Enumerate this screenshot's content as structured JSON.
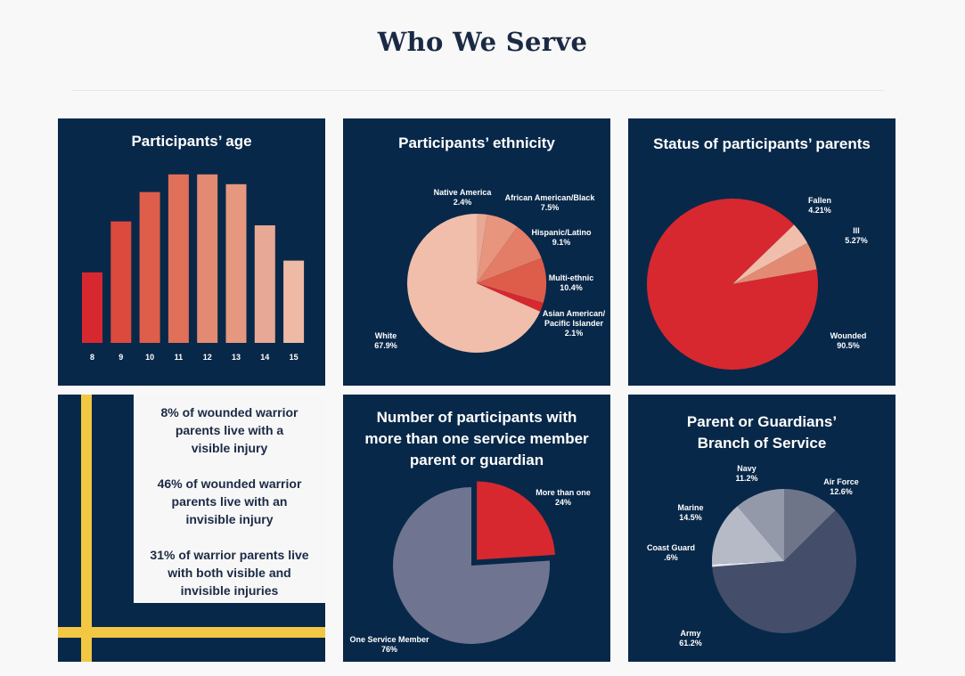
{
  "header": {
    "title": "Who We Serve"
  },
  "colors": {
    "navy": "#082849",
    "gold": "#f2c744",
    "red": "#d7282f",
    "title": "#1b2a44"
  },
  "stats_card": {
    "stats": [
      "8% of wounded warrior parents live with a visible injury",
      "46% of wounded warrior parents live with an invisible injury",
      "31% of warrior parents live with both visible and invisible injuries"
    ],
    "lines": [
      [
        "8% of wounded warrior",
        "parents live with a",
        "visible injury"
      ],
      [
        "46% of wounded warrior",
        "parents live with an",
        "invisible injury"
      ],
      [
        "31% of warrior parents live",
        "with both visible and",
        "invisible injuries"
      ]
    ]
  },
  "chart_data": [
    {
      "type": "bar",
      "title": "Participants’ age",
      "xlabel": "",
      "ylabel": "",
      "categories": [
        "8",
        "9",
        "10",
        "11",
        "12",
        "13",
        "14",
        "15"
      ],
      "values": [
        36,
        62,
        77,
        86,
        86,
        81,
        60,
        42
      ],
      "ylim": [
        0,
        100
      ],
      "grid": false,
      "colors": [
        "#d7282f",
        "#dc4a3e",
        "#df5e4b",
        "#e0705a",
        "#e38a72",
        "#e5977f",
        "#e8a896",
        "#eebaa6"
      ]
    },
    {
      "type": "pie",
      "title": "Participants’ ethnicity",
      "slices": [
        {
          "label": "Native America",
          "value": 2.4,
          "display": "2.4%",
          "color": "#e8a896"
        },
        {
          "label": "African American/Black",
          "value": 7.5,
          "display": "7.5%",
          "color": "#e8957e"
        },
        {
          "label": "Hispanic/Latino",
          "value": 9.1,
          "display": "9.1%",
          "color": "#e37d67"
        },
        {
          "label": "Multi-ethnic",
          "value": 10.4,
          "display": "10.4%",
          "color": "#dd5d4a"
        },
        {
          "label": "Asian American/ Pacific Islander",
          "value": 2.1,
          "display": "2.1%",
          "color": "#d7282f"
        },
        {
          "label": "White",
          "value": 67.9,
          "display": "67.9%",
          "color": "#f0beaa"
        }
      ]
    },
    {
      "type": "pie",
      "title": "Status of participants’ parents",
      "slices": [
        {
          "label": "Fallen",
          "value": 4.21,
          "display": "4.21%",
          "color": "#f0beaa"
        },
        {
          "label": "Ill",
          "value": 5.27,
          "display": "5.27%",
          "color": "#e38a72"
        },
        {
          "label": "Wounded",
          "value": 90.5,
          "display": "90.5%",
          "color": "#d7282f"
        }
      ]
    },
    {
      "type": "pie",
      "title": "Number of participants with more than one service member parent or guardian",
      "title_lines": [
        "Number of participants with",
        "more than one service member",
        "parent or guardian"
      ],
      "slices": [
        {
          "label": "More than one",
          "value": 24,
          "display": "24%",
          "color": "#d7282f"
        },
        {
          "label": "One Service Member",
          "value": 76,
          "display": "76%",
          "color": "#6f7590"
        }
      ]
    },
    {
      "type": "pie",
      "title": "Parent or Guardians’ Branch of Service",
      "title_lines": [
        "Parent or Guardians’",
        "Branch of Service"
      ],
      "slices": [
        {
          "label": "Air Force",
          "value": 12.6,
          "display": "12.6%",
          "color": "#6e7589"
        },
        {
          "label": "Army",
          "value": 61.2,
          "display": "61.2%",
          "color": "#444d6a"
        },
        {
          "label": "Coast Guard",
          "value": 0.6,
          "display": ".6%",
          "color": "#e4e6ec"
        },
        {
          "label": "Marine",
          "value": 14.5,
          "display": "14.5%",
          "color": "#b6bac7"
        },
        {
          "label": "Navy",
          "value": 11.2,
          "display": "11.2%",
          "color": "#9499aa"
        }
      ]
    }
  ]
}
